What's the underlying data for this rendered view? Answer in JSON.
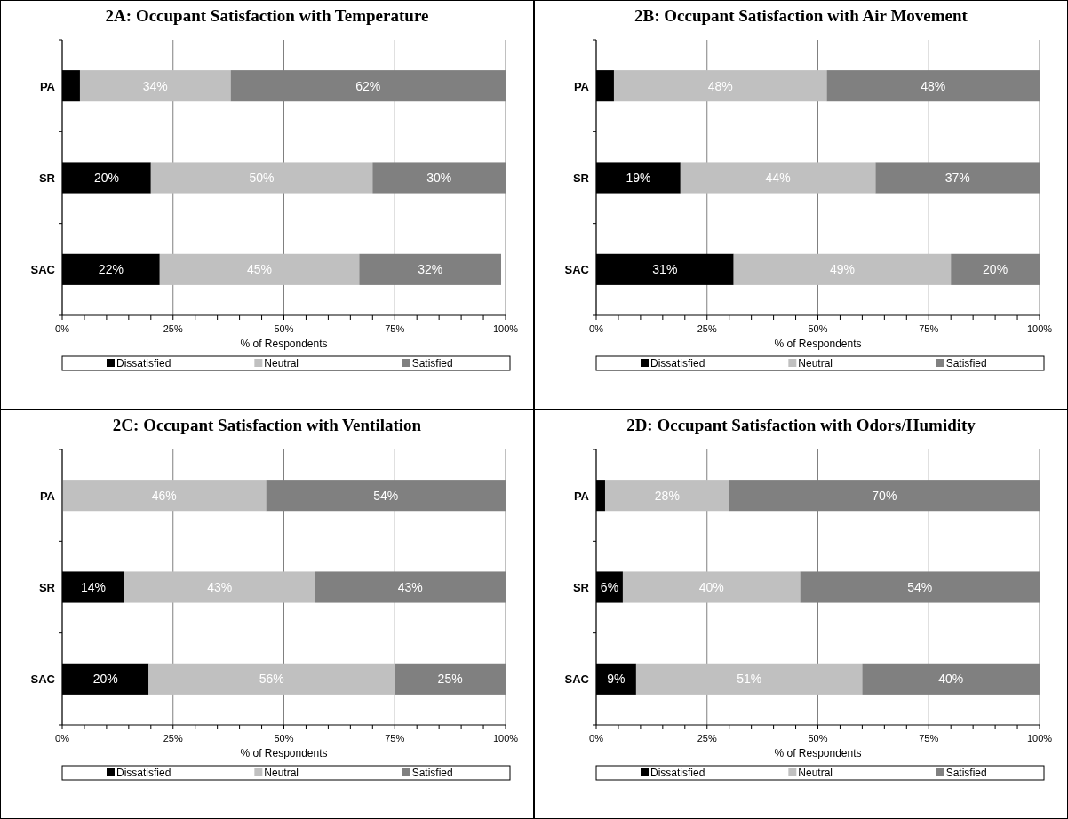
{
  "chart_data": [
    {
      "type": "bar",
      "orientation": "horizontal",
      "stacked": true,
      "title": "2A: Occupant Satisfaction with Temperature",
      "xlabel": "% of Respondents",
      "categories": [
        "PA",
        "SR",
        "SAC"
      ],
      "xlim": [
        0,
        100
      ],
      "xticks": [
        {
          "value": 0,
          "label": "0%"
        },
        {
          "value": 5,
          "label": null
        },
        {
          "value": 10,
          "label": null
        },
        {
          "value": 15,
          "label": null
        },
        {
          "value": 20,
          "label": null
        },
        {
          "value": 25,
          "label": "25%"
        },
        {
          "value": 30,
          "label": null
        },
        {
          "value": 35,
          "label": null
        },
        {
          "value": 40,
          "label": null
        },
        {
          "value": 45,
          "label": null
        },
        {
          "value": 50,
          "label": "50%"
        },
        {
          "value": 55,
          "label": null
        },
        {
          "value": 60,
          "label": null
        },
        {
          "value": 65,
          "label": null
        },
        {
          "value": 70,
          "label": null
        },
        {
          "value": 75,
          "label": "75%"
        },
        {
          "value": 80,
          "label": null
        },
        {
          "value": 85,
          "label": null
        },
        {
          "value": 90,
          "label": null
        },
        {
          "value": 95,
          "label": null
        },
        {
          "value": 100,
          "label": "100%"
        }
      ],
      "grid": "x",
      "legend": "bottom",
      "series": [
        {
          "name": "Dissatisfied",
          "color": "#000000",
          "values": [
            4,
            20,
            22
          ],
          "value_labels": [
            null,
            "20%",
            "22%"
          ]
        },
        {
          "name": "Neutral",
          "color": "#c0c0c0",
          "values": [
            34,
            50,
            45
          ],
          "value_labels": [
            "34%",
            "50%",
            "45%"
          ]
        },
        {
          "name": "Satisfied",
          "color": "#808080",
          "values": [
            62,
            30,
            32
          ],
          "value_labels": [
            "62%",
            "30%",
            "32%"
          ]
        }
      ]
    },
    {
      "type": "bar",
      "orientation": "horizontal",
      "stacked": true,
      "title": "2B: Occupant Satisfaction with Air Movement",
      "xlabel": "% of Respondents",
      "categories": [
        "PA",
        "SR",
        "SAC"
      ],
      "xlim": [
        0,
        100
      ],
      "xticks": [
        {
          "value": 0,
          "label": "0%"
        },
        {
          "value": 5,
          "label": null
        },
        {
          "value": 10,
          "label": null
        },
        {
          "value": 15,
          "label": null
        },
        {
          "value": 20,
          "label": null
        },
        {
          "value": 25,
          "label": "25%"
        },
        {
          "value": 30,
          "label": null
        },
        {
          "value": 35,
          "label": null
        },
        {
          "value": 40,
          "label": null
        },
        {
          "value": 45,
          "label": null
        },
        {
          "value": 50,
          "label": "50%"
        },
        {
          "value": 55,
          "label": null
        },
        {
          "value": 60,
          "label": null
        },
        {
          "value": 65,
          "label": null
        },
        {
          "value": 70,
          "label": null
        },
        {
          "value": 75,
          "label": "75%"
        },
        {
          "value": 80,
          "label": null
        },
        {
          "value": 85,
          "label": null
        },
        {
          "value": 90,
          "label": null
        },
        {
          "value": 95,
          "label": null
        },
        {
          "value": 100,
          "label": "100%"
        }
      ],
      "grid": "x",
      "legend": "bottom",
      "series": [
        {
          "name": "Dissatisfied",
          "color": "#000000",
          "values": [
            4,
            19,
            31
          ],
          "value_labels": [
            null,
            "19%",
            "31%"
          ]
        },
        {
          "name": "Neutral",
          "color": "#c0c0c0",
          "values": [
            48,
            44,
            49
          ],
          "value_labels": [
            "48%",
            "44%",
            "49%"
          ]
        },
        {
          "name": "Satisfied",
          "color": "#808080",
          "values": [
            48,
            37,
            20
          ],
          "value_labels": [
            "48%",
            "37%",
            "20%"
          ]
        }
      ]
    },
    {
      "type": "bar",
      "orientation": "horizontal",
      "stacked": true,
      "title": "2C: Occupant Satisfaction with Ventilation",
      "xlabel": "% of Respondents",
      "categories": [
        "PA",
        "SR",
        "SAC"
      ],
      "xlim": [
        0,
        100
      ],
      "xticks": [
        {
          "value": 0,
          "label": "0%"
        },
        {
          "value": 5,
          "label": null
        },
        {
          "value": 10,
          "label": null
        },
        {
          "value": 15,
          "label": null
        },
        {
          "value": 20,
          "label": null
        },
        {
          "value": 25,
          "label": "25%"
        },
        {
          "value": 30,
          "label": null
        },
        {
          "value": 35,
          "label": null
        },
        {
          "value": 40,
          "label": null
        },
        {
          "value": 45,
          "label": null
        },
        {
          "value": 50,
          "label": "50%"
        },
        {
          "value": 55,
          "label": null
        },
        {
          "value": 60,
          "label": null
        },
        {
          "value": 65,
          "label": null
        },
        {
          "value": 70,
          "label": null
        },
        {
          "value": 75,
          "label": "75%"
        },
        {
          "value": 80,
          "label": null
        },
        {
          "value": 85,
          "label": null
        },
        {
          "value": 90,
          "label": null
        },
        {
          "value": 95,
          "label": null
        },
        {
          "value": 100,
          "label": "100%"
        }
      ],
      "grid": "x",
      "legend": "bottom",
      "series": [
        {
          "name": "Dissatisfied",
          "color": "#000000",
          "values": [
            0,
            14,
            19.5
          ],
          "value_labels": [
            null,
            "14%",
            "20%"
          ]
        },
        {
          "name": "Neutral",
          "color": "#c0c0c0",
          "values": [
            46,
            43,
            55.5
          ],
          "value_labels": [
            "46%",
            "43%",
            "56%"
          ]
        },
        {
          "name": "Satisfied",
          "color": "#808080",
          "values": [
            54,
            43,
            25
          ],
          "value_labels": [
            "54%",
            "43%",
            "25%"
          ]
        }
      ]
    },
    {
      "type": "bar",
      "orientation": "horizontal",
      "stacked": true,
      "title": "2D: Occupant Satisfaction with Odors/Humidity",
      "xlabel": "% of Respondents",
      "categories": [
        "PA",
        "SR",
        "SAC"
      ],
      "xlim": [
        0,
        100
      ],
      "xticks": [
        {
          "value": 0,
          "label": "0%"
        },
        {
          "value": 5,
          "label": null
        },
        {
          "value": 10,
          "label": null
        },
        {
          "value": 15,
          "label": null
        },
        {
          "value": 20,
          "label": null
        },
        {
          "value": 25,
          "label": "25%"
        },
        {
          "value": 30,
          "label": null
        },
        {
          "value": 35,
          "label": null
        },
        {
          "value": 40,
          "label": null
        },
        {
          "value": 45,
          "label": null
        },
        {
          "value": 50,
          "label": "50%"
        },
        {
          "value": 55,
          "label": null
        },
        {
          "value": 60,
          "label": null
        },
        {
          "value": 65,
          "label": null
        },
        {
          "value": 70,
          "label": null
        },
        {
          "value": 75,
          "label": "75%"
        },
        {
          "value": 80,
          "label": null
        },
        {
          "value": 85,
          "label": null
        },
        {
          "value": 90,
          "label": null
        },
        {
          "value": 95,
          "label": null
        },
        {
          "value": 100,
          "label": "100%"
        }
      ],
      "grid": "x",
      "legend": "bottom",
      "series": [
        {
          "name": "Dissatisfied",
          "color": "#000000",
          "values": [
            2,
            6,
            9
          ],
          "value_labels": [
            null,
            "6%",
            "9%"
          ]
        },
        {
          "name": "Neutral",
          "color": "#c0c0c0",
          "values": [
            28,
            40,
            51
          ],
          "value_labels": [
            "28%",
            "40%",
            "51%"
          ]
        },
        {
          "name": "Satisfied",
          "color": "#808080",
          "values": [
            70,
            54,
            40
          ],
          "value_labels": [
            "70%",
            "54%",
            "40%"
          ]
        }
      ]
    }
  ]
}
